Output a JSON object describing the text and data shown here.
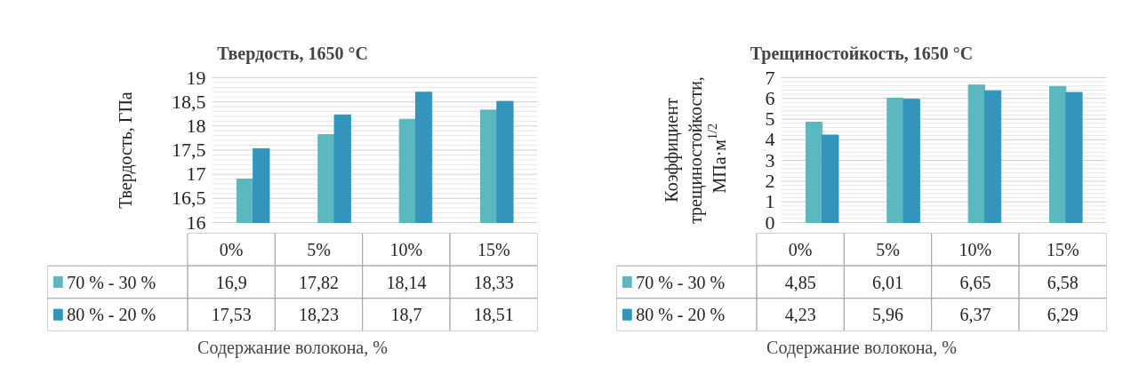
{
  "chart_data": [
    {
      "type": "bar",
      "title": "Твердость, 1650 °C",
      "ylabel": "Твердость, ГПа",
      "xlabel": "Содержание волокона, %",
      "categories": [
        "0%",
        "5%",
        "10%",
        "15%"
      ],
      "series": [
        {
          "name": "70 % - 30 %",
          "color": "#5bb7c0",
          "values": [
            16.9,
            17.82,
            18.14,
            18.33
          ],
          "value_labels": [
            "16,9",
            "17,82",
            "18,14",
            "18,33"
          ]
        },
        {
          "name": "80 % - 20 %",
          "color": "#3594bb",
          "values": [
            17.53,
            18.23,
            18.7,
            18.51
          ],
          "value_labels": [
            "17,53",
            "18,23",
            "18,7",
            "18,51"
          ]
        }
      ],
      "ylim": [
        16,
        19
      ],
      "yticks": [
        16,
        {
          "value": 16.5,
          "label": "16,5"
        },
        17,
        {
          "value": 17.5,
          "label": "17,5"
        },
        18,
        {
          "value": 18.5,
          "label": "18,5"
        },
        19
      ],
      "grid": "y",
      "legend": "bottom"
    },
    {
      "type": "bar",
      "title": "Трещиностойкость, 1650 °C",
      "ylabel": "Коэффициент трещиностойкости, МПа·м$^{1/2}$",
      "xlabel": "Содержание волокона, %",
      "categories": [
        "0%",
        "5%",
        "10%",
        "15%"
      ],
      "series": [
        {
          "name": "70 % - 30 %",
          "color": "#5bb7c0",
          "values": [
            4.85,
            6.01,
            6.65,
            6.58
          ],
          "value_labels": [
            "4,85",
            "6,01",
            "6,65",
            "6,58"
          ]
        },
        {
          "name": "80 % - 20 %",
          "color": "#3594bb",
          "values": [
            4.23,
            5.96,
            6.37,
            6.29
          ],
          "value_labels": [
            "4,23",
            "5,96",
            "6,37",
            "6,29"
          ]
        }
      ],
      "ylim": [
        0,
        7
      ],
      "yticks": [
        0,
        1,
        2,
        3,
        4,
        5,
        6,
        7
      ],
      "grid": "y",
      "legend": "bottom"
    }
  ]
}
